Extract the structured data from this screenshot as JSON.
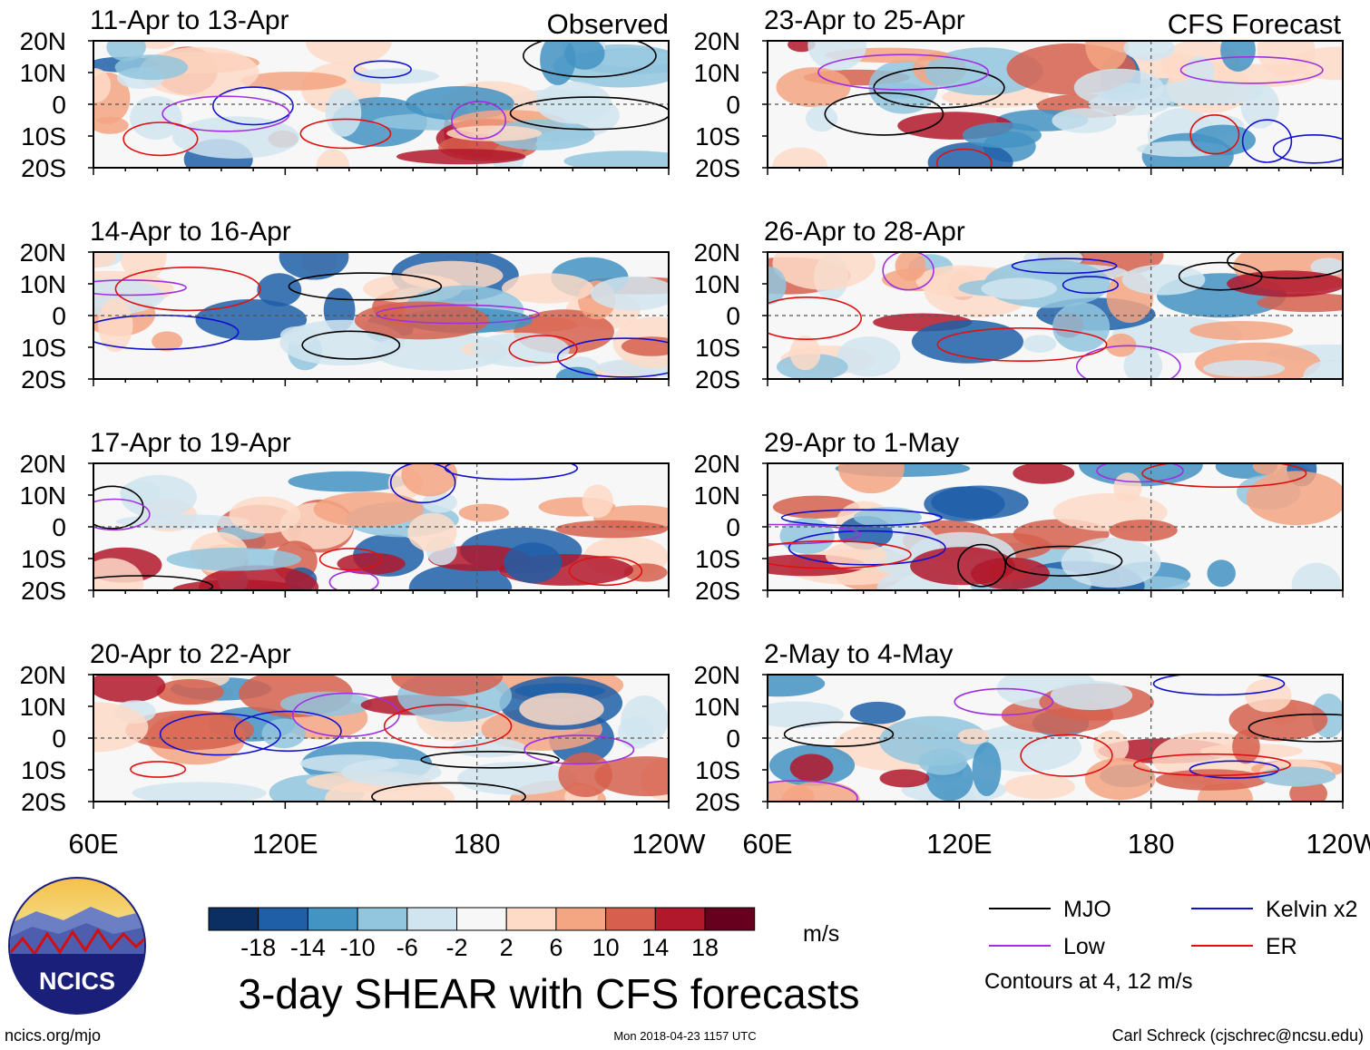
{
  "figure": {
    "title": "3-day SHEAR with CFS forecasts",
    "observed_label": "Observed",
    "forecast_label": "CFS Forecast",
    "units": "m/s",
    "footer_left": "ncics.org/mjo",
    "footer_center": "Mon 2018-04-23 1157 UTC",
    "footer_right": "Carl Schreck (cjschrec@ncsu.edu)",
    "logo_text": "NCICS"
  },
  "chart_data": {
    "type": "heatmap",
    "variable": "3-day vertical wind shear anomaly",
    "x_ticks": [
      "60E",
      "120E",
      "180",
      "120W"
    ],
    "x_range_deg_east": [
      60,
      240
    ],
    "y_ticks": [
      "20N",
      "10N",
      "0",
      "10S",
      "20S"
    ],
    "y_range_deg": [
      20,
      -20
    ],
    "panels": [
      {
        "column": "observed",
        "title": "11-Apr to 13-Apr"
      },
      {
        "column": "observed",
        "title": "14-Apr to 16-Apr"
      },
      {
        "column": "observed",
        "title": "17-Apr to 19-Apr"
      },
      {
        "column": "observed",
        "title": "20-Apr to 22-Apr"
      },
      {
        "column": "forecast",
        "title": "23-Apr to 25-Apr"
      },
      {
        "column": "forecast",
        "title": "26-Apr to 28-Apr"
      },
      {
        "column": "forecast",
        "title": "29-Apr to 1-May"
      },
      {
        "column": "forecast",
        "title": "2-May to 4-May"
      }
    ],
    "colorbar": {
      "labels": [
        "-18",
        "-14",
        "-10",
        "-6",
        "-2",
        "2",
        "6",
        "10",
        "14",
        "18"
      ],
      "colors": [
        "#0b2e63",
        "#1f5fa8",
        "#4393c3",
        "#92c5de",
        "#d1e5f0",
        "#f7f7f7",
        "#fddbc7",
        "#f4a582",
        "#d6604d",
        "#b2182b",
        "#67001f"
      ],
      "units": "m/s"
    },
    "legend": [
      {
        "label": "MJO",
        "color": "#000000"
      },
      {
        "label": "Kelvin x2",
        "color": "#1010d0"
      },
      {
        "label": "Low",
        "color": "#a030e0"
      },
      {
        "label": "ER",
        "color": "#e01010"
      }
    ],
    "contour_note": "Contours at 4, 12 m/s"
  }
}
